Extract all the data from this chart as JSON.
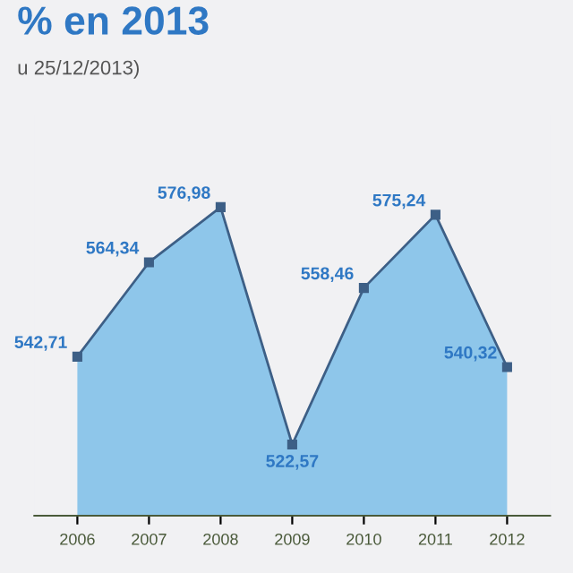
{
  "chart_data": {
    "type": "area",
    "title": "% en 2013",
    "subtitle": "u 25/12/2013)",
    "categories": [
      "2006",
      "2007",
      "2008",
      "2009",
      "2010",
      "2011",
      "2012"
    ],
    "series": [
      {
        "color": "#8ec6ea",
        "values": [
          542.71,
          564.34,
          576.98,
          522.57,
          558.46,
          575.24,
          540.32
        ],
        "value_labels": [
          "542,71",
          "564,34",
          "576,98",
          "522,57",
          "558,46",
          "575,24",
          "540,32"
        ]
      }
    ],
    "marker": "square",
    "grid": false,
    "legend": false
  }
}
